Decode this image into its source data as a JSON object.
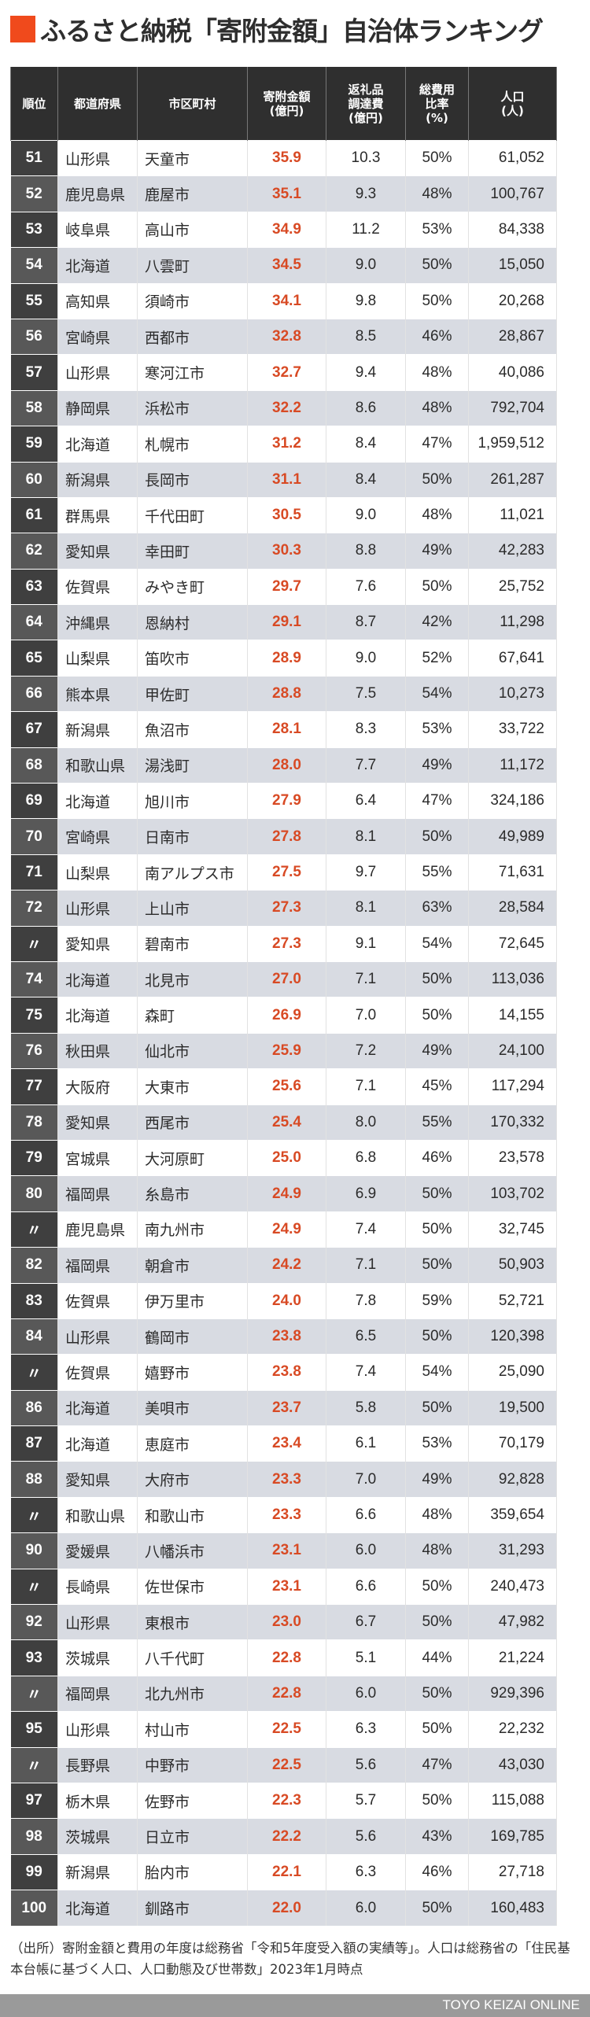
{
  "title": "ふるさと納税「寄附金額」自治体ランキング",
  "colors": {
    "accent": "#f04a1c",
    "amount_text": "#d84a24",
    "header_bg": "#2f2f2f",
    "row_alt_bg": "#d8dbe2",
    "footer_bg": "#9a9a9a"
  },
  "table": {
    "headers": [
      "順位",
      "都道府県",
      "市区町村",
      "寄附金額\n(億円)",
      "返礼品\n調達費\n(億円)",
      "総費用\n比率\n(%)",
      "人口\n(人)"
    ],
    "rows": [
      {
        "rank": "51",
        "pref": "山形県",
        "city": "天童市",
        "amount": "35.9",
        "cost": "10.3",
        "ratio": "50%",
        "pop": "61,052"
      },
      {
        "rank": "52",
        "pref": "鹿児島県",
        "city": "鹿屋市",
        "amount": "35.1",
        "cost": "9.3",
        "ratio": "48%",
        "pop": "100,767"
      },
      {
        "rank": "53",
        "pref": "岐阜県",
        "city": "高山市",
        "amount": "34.9",
        "cost": "11.2",
        "ratio": "53%",
        "pop": "84,338"
      },
      {
        "rank": "54",
        "pref": "北海道",
        "city": "八雲町",
        "amount": "34.5",
        "cost": "9.0",
        "ratio": "50%",
        "pop": "15,050"
      },
      {
        "rank": "55",
        "pref": "高知県",
        "city": "須崎市",
        "amount": "34.1",
        "cost": "9.8",
        "ratio": "50%",
        "pop": "20,268"
      },
      {
        "rank": "56",
        "pref": "宮崎県",
        "city": "西都市",
        "amount": "32.8",
        "cost": "8.5",
        "ratio": "46%",
        "pop": "28,867"
      },
      {
        "rank": "57",
        "pref": "山形県",
        "city": "寒河江市",
        "amount": "32.7",
        "cost": "9.4",
        "ratio": "48%",
        "pop": "40,086"
      },
      {
        "rank": "58",
        "pref": "静岡県",
        "city": "浜松市",
        "amount": "32.2",
        "cost": "8.6",
        "ratio": "48%",
        "pop": "792,704"
      },
      {
        "rank": "59",
        "pref": "北海道",
        "city": "札幌市",
        "amount": "31.2",
        "cost": "8.4",
        "ratio": "47%",
        "pop": "1,959,512"
      },
      {
        "rank": "60",
        "pref": "新潟県",
        "city": "長岡市",
        "amount": "31.1",
        "cost": "8.4",
        "ratio": "50%",
        "pop": "261,287"
      },
      {
        "rank": "61",
        "pref": "群馬県",
        "city": "千代田町",
        "amount": "30.5",
        "cost": "9.0",
        "ratio": "48%",
        "pop": "11,021"
      },
      {
        "rank": "62",
        "pref": "愛知県",
        "city": "幸田町",
        "amount": "30.3",
        "cost": "8.8",
        "ratio": "49%",
        "pop": "42,283"
      },
      {
        "rank": "63",
        "pref": "佐賀県",
        "city": "みやき町",
        "amount": "29.7",
        "cost": "7.6",
        "ratio": "50%",
        "pop": "25,752"
      },
      {
        "rank": "64",
        "pref": "沖縄県",
        "city": "恩納村",
        "amount": "29.1",
        "cost": "8.7",
        "ratio": "42%",
        "pop": "11,298"
      },
      {
        "rank": "65",
        "pref": "山梨県",
        "city": "笛吹市",
        "amount": "28.9",
        "cost": "9.0",
        "ratio": "52%",
        "pop": "67,641"
      },
      {
        "rank": "66",
        "pref": "熊本県",
        "city": "甲佐町",
        "amount": "28.8",
        "cost": "7.5",
        "ratio": "54%",
        "pop": "10,273"
      },
      {
        "rank": "67",
        "pref": "新潟県",
        "city": "魚沼市",
        "amount": "28.1",
        "cost": "8.3",
        "ratio": "53%",
        "pop": "33,722"
      },
      {
        "rank": "68",
        "pref": "和歌山県",
        "city": "湯浅町",
        "amount": "28.0",
        "cost": "7.7",
        "ratio": "49%",
        "pop": "11,172"
      },
      {
        "rank": "69",
        "pref": "北海道",
        "city": "旭川市",
        "amount": "27.9",
        "cost": "6.4",
        "ratio": "47%",
        "pop": "324,186"
      },
      {
        "rank": "70",
        "pref": "宮崎県",
        "city": "日南市",
        "amount": "27.8",
        "cost": "8.1",
        "ratio": "50%",
        "pop": "49,989"
      },
      {
        "rank": "71",
        "pref": "山梨県",
        "city": "南アルプス市",
        "amount": "27.5",
        "cost": "9.7",
        "ratio": "55%",
        "pop": "71,631"
      },
      {
        "rank": "72",
        "pref": "山形県",
        "city": "上山市",
        "amount": "27.3",
        "cost": "8.1",
        "ratio": "63%",
        "pop": "28,584"
      },
      {
        "rank": "〃",
        "pref": "愛知県",
        "city": "碧南市",
        "amount": "27.3",
        "cost": "9.1",
        "ratio": "54%",
        "pop": "72,645"
      },
      {
        "rank": "74",
        "pref": "北海道",
        "city": "北見市",
        "amount": "27.0",
        "cost": "7.1",
        "ratio": "50%",
        "pop": "113,036"
      },
      {
        "rank": "75",
        "pref": "北海道",
        "city": "森町",
        "amount": "26.9",
        "cost": "7.0",
        "ratio": "50%",
        "pop": "14,155"
      },
      {
        "rank": "76",
        "pref": "秋田県",
        "city": "仙北市",
        "amount": "25.9",
        "cost": "7.2",
        "ratio": "49%",
        "pop": "24,100"
      },
      {
        "rank": "77",
        "pref": "大阪府",
        "city": "大東市",
        "amount": "25.6",
        "cost": "7.1",
        "ratio": "45%",
        "pop": "117,294"
      },
      {
        "rank": "78",
        "pref": "愛知県",
        "city": "西尾市",
        "amount": "25.4",
        "cost": "8.0",
        "ratio": "55%",
        "pop": "170,332"
      },
      {
        "rank": "79",
        "pref": "宮城県",
        "city": "大河原町",
        "amount": "25.0",
        "cost": "6.8",
        "ratio": "46%",
        "pop": "23,578"
      },
      {
        "rank": "80",
        "pref": "福岡県",
        "city": "糸島市",
        "amount": "24.9",
        "cost": "6.9",
        "ratio": "50%",
        "pop": "103,702"
      },
      {
        "rank": "〃",
        "pref": "鹿児島県",
        "city": "南九州市",
        "amount": "24.9",
        "cost": "7.4",
        "ratio": "50%",
        "pop": "32,745"
      },
      {
        "rank": "82",
        "pref": "福岡県",
        "city": "朝倉市",
        "amount": "24.2",
        "cost": "7.1",
        "ratio": "50%",
        "pop": "50,903"
      },
      {
        "rank": "83",
        "pref": "佐賀県",
        "city": "伊万里市",
        "amount": "24.0",
        "cost": "7.8",
        "ratio": "59%",
        "pop": "52,721"
      },
      {
        "rank": "84",
        "pref": "山形県",
        "city": "鶴岡市",
        "amount": "23.8",
        "cost": "6.5",
        "ratio": "50%",
        "pop": "120,398"
      },
      {
        "rank": "〃",
        "pref": "佐賀県",
        "city": "嬉野市",
        "amount": "23.8",
        "cost": "7.4",
        "ratio": "54%",
        "pop": "25,090"
      },
      {
        "rank": "86",
        "pref": "北海道",
        "city": "美唄市",
        "amount": "23.7",
        "cost": "5.8",
        "ratio": "50%",
        "pop": "19,500"
      },
      {
        "rank": "87",
        "pref": "北海道",
        "city": "恵庭市",
        "amount": "23.4",
        "cost": "6.1",
        "ratio": "53%",
        "pop": "70,179"
      },
      {
        "rank": "88",
        "pref": "愛知県",
        "city": "大府市",
        "amount": "23.3",
        "cost": "7.0",
        "ratio": "49%",
        "pop": "92,828"
      },
      {
        "rank": "〃",
        "pref": "和歌山県",
        "city": "和歌山市",
        "amount": "23.3",
        "cost": "6.6",
        "ratio": "48%",
        "pop": "359,654"
      },
      {
        "rank": "90",
        "pref": "愛媛県",
        "city": "八幡浜市",
        "amount": "23.1",
        "cost": "6.0",
        "ratio": "48%",
        "pop": "31,293"
      },
      {
        "rank": "〃",
        "pref": "長崎県",
        "city": "佐世保市",
        "amount": "23.1",
        "cost": "6.6",
        "ratio": "50%",
        "pop": "240,473"
      },
      {
        "rank": "92",
        "pref": "山形県",
        "city": "東根市",
        "amount": "23.0",
        "cost": "6.7",
        "ratio": "50%",
        "pop": "47,982"
      },
      {
        "rank": "93",
        "pref": "茨城県",
        "city": "八千代町",
        "amount": "22.8",
        "cost": "5.1",
        "ratio": "44%",
        "pop": "21,224"
      },
      {
        "rank": "〃",
        "pref": "福岡県",
        "city": "北九州市",
        "amount": "22.8",
        "cost": "6.0",
        "ratio": "50%",
        "pop": "929,396"
      },
      {
        "rank": "95",
        "pref": "山形県",
        "city": "村山市",
        "amount": "22.5",
        "cost": "6.3",
        "ratio": "50%",
        "pop": "22,232"
      },
      {
        "rank": "〃",
        "pref": "長野県",
        "city": "中野市",
        "amount": "22.5",
        "cost": "5.6",
        "ratio": "47%",
        "pop": "43,030"
      },
      {
        "rank": "97",
        "pref": "栃木県",
        "city": "佐野市",
        "amount": "22.3",
        "cost": "5.7",
        "ratio": "50%",
        "pop": "115,088"
      },
      {
        "rank": "98",
        "pref": "茨城県",
        "city": "日立市",
        "amount": "22.2",
        "cost": "5.6",
        "ratio": "43%",
        "pop": "169,785"
      },
      {
        "rank": "99",
        "pref": "新潟県",
        "city": "胎内市",
        "amount": "22.1",
        "cost": "6.3",
        "ratio": "46%",
        "pop": "27,718"
      },
      {
        "rank": "100",
        "pref": "北海道",
        "city": "釧路市",
        "amount": "22.0",
        "cost": "6.0",
        "ratio": "50%",
        "pop": "160,483"
      }
    ]
  },
  "note": "（出所）寄附金額と費用の年度は総務省「令和5年度受入額の実績等」。人口は総務省の「住民基本台帳に基づく人口、人口動態及び世帯数」2023年1月時点",
  "footer": "TOYO KEIZAI ONLINE",
  "chart_data": {
    "type": "table",
    "title": "ふるさと納税「寄附金額」自治体ランキング",
    "columns": [
      "順位",
      "都道府県",
      "市区町村",
      "寄附金額(億円)",
      "返礼品調達費(億円)",
      "総費用比率(%)",
      "人口(人)"
    ],
    "rows": [
      [
        "51",
        "山形県",
        "天童市",
        35.9,
        10.3,
        50,
        61052
      ],
      [
        "52",
        "鹿児島県",
        "鹿屋市",
        35.1,
        9.3,
        48,
        100767
      ],
      [
        "53",
        "岐阜県",
        "高山市",
        34.9,
        11.2,
        53,
        84338
      ],
      [
        "54",
        "北海道",
        "八雲町",
        34.5,
        9.0,
        50,
        15050
      ],
      [
        "55",
        "高知県",
        "須崎市",
        34.1,
        9.8,
        50,
        20268
      ],
      [
        "56",
        "宮崎県",
        "西都市",
        32.8,
        8.5,
        46,
        28867
      ],
      [
        "57",
        "山形県",
        "寒河江市",
        32.7,
        9.4,
        48,
        40086
      ],
      [
        "58",
        "静岡県",
        "浜松市",
        32.2,
        8.6,
        48,
        792704
      ],
      [
        "59",
        "北海道",
        "札幌市",
        31.2,
        8.4,
        47,
        1959512
      ],
      [
        "60",
        "新潟県",
        "長岡市",
        31.1,
        8.4,
        50,
        261287
      ],
      [
        "61",
        "群馬県",
        "千代田町",
        30.5,
        9.0,
        48,
        11021
      ],
      [
        "62",
        "愛知県",
        "幸田町",
        30.3,
        8.8,
        49,
        42283
      ],
      [
        "63",
        "佐賀県",
        "みやき町",
        29.7,
        7.6,
        50,
        25752
      ],
      [
        "64",
        "沖縄県",
        "恩納村",
        29.1,
        8.7,
        42,
        11298
      ],
      [
        "65",
        "山梨県",
        "笛吹市",
        28.9,
        9.0,
        52,
        67641
      ],
      [
        "66",
        "熊本県",
        "甲佐町",
        28.8,
        7.5,
        54,
        10273
      ],
      [
        "67",
        "新潟県",
        "魚沼市",
        28.1,
        8.3,
        53,
        33722
      ],
      [
        "68",
        "和歌山県",
        "湯浅町",
        28.0,
        7.7,
        49,
        11172
      ],
      [
        "69",
        "北海道",
        "旭川市",
        27.9,
        6.4,
        47,
        324186
      ],
      [
        "70",
        "宮崎県",
        "日南市",
        27.8,
        8.1,
        50,
        49989
      ],
      [
        "71",
        "山梨県",
        "南アルプス市",
        27.5,
        9.7,
        55,
        71631
      ],
      [
        "72",
        "山形県",
        "上山市",
        27.3,
        8.1,
        63,
        28584
      ],
      [
        "〃",
        "愛知県",
        "碧南市",
        27.3,
        9.1,
        54,
        72645
      ],
      [
        "74",
        "北海道",
        "北見市",
        27.0,
        7.1,
        50,
        113036
      ],
      [
        "75",
        "北海道",
        "森町",
        26.9,
        7.0,
        50,
        14155
      ],
      [
        "76",
        "秋田県",
        "仙北市",
        25.9,
        7.2,
        49,
        24100
      ],
      [
        "77",
        "大阪府",
        "大東市",
        25.6,
        7.1,
        45,
        117294
      ],
      [
        "78",
        "愛知県",
        "西尾市",
        25.4,
        8.0,
        55,
        170332
      ],
      [
        "79",
        "宮城県",
        "大河原町",
        25.0,
        6.8,
        46,
        23578
      ],
      [
        "80",
        "福岡県",
        "糸島市",
        24.9,
        6.9,
        50,
        103702
      ],
      [
        "〃",
        "鹿児島県",
        "南九州市",
        24.9,
        7.4,
        50,
        32745
      ],
      [
        "82",
        "福岡県",
        "朝倉市",
        24.2,
        7.1,
        50,
        50903
      ],
      [
        "83",
        "佐賀県",
        "伊万里市",
        24.0,
        7.8,
        59,
        52721
      ],
      [
        "84",
        "山形県",
        "鶴岡市",
        23.8,
        6.5,
        50,
        120398
      ],
      [
        "〃",
        "佐賀県",
        "嬉野市",
        23.8,
        7.4,
        54,
        25090
      ],
      [
        "86",
        "北海道",
        "美唄市",
        23.7,
        5.8,
        50,
        19500
      ],
      [
        "87",
        "北海道",
        "恵庭市",
        23.4,
        6.1,
        53,
        70179
      ],
      [
        "88",
        "愛知県",
        "大府市",
        23.3,
        7.0,
        49,
        92828
      ],
      [
        "〃",
        "和歌山県",
        "和歌山市",
        23.3,
        6.6,
        48,
        359654
      ],
      [
        "90",
        "愛媛県",
        "八幡浜市",
        23.1,
        6.0,
        48,
        31293
      ],
      [
        "〃",
        "長崎県",
        "佐世保市",
        23.1,
        6.6,
        50,
        240473
      ],
      [
        "92",
        "山形県",
        "東根市",
        23.0,
        6.7,
        50,
        47982
      ],
      [
        "93",
        "茨城県",
        "八千代町",
        22.8,
        5.1,
        44,
        21224
      ],
      [
        "〃",
        "福岡県",
        "北九州市",
        22.8,
        6.0,
        50,
        929396
      ],
      [
        "95",
        "山形県",
        "村山市",
        22.5,
        6.3,
        50,
        22232
      ],
      [
        "〃",
        "長野県",
        "中野市",
        22.5,
        5.6,
        47,
        43030
      ],
      [
        "97",
        "栃木県",
        "佐野市",
        22.3,
        5.7,
        50,
        115088
      ],
      [
        "98",
        "茨城県",
        "日立市",
        22.2,
        5.6,
        43,
        169785
      ],
      [
        "99",
        "新潟県",
        "胎内市",
        22.1,
        6.3,
        46,
        27718
      ],
      [
        "100",
        "北海道",
        "釧路市",
        22.0,
        6.0,
        50,
        160483
      ]
    ]
  }
}
